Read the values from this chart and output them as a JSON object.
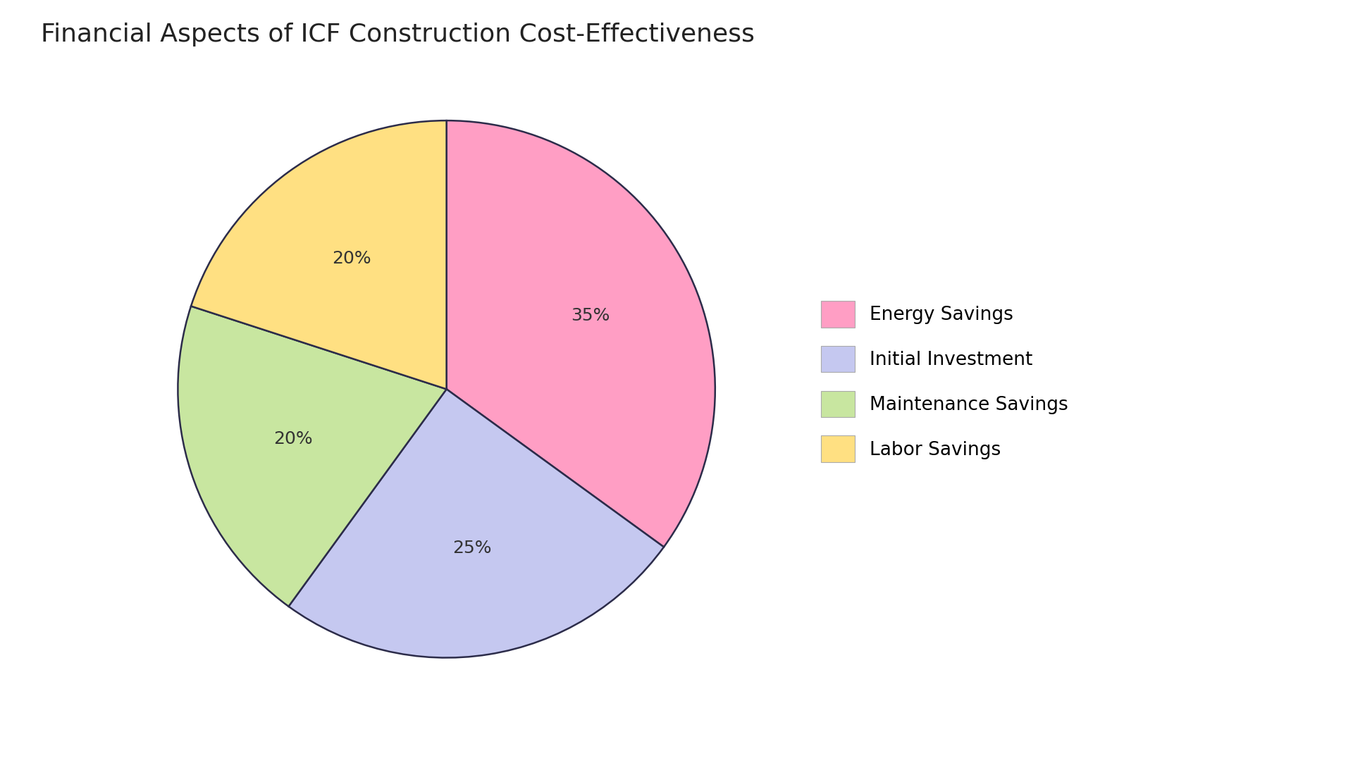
{
  "title": "Financial Aspects of ICF Construction Cost-Effectiveness",
  "segments": [
    {
      "label": "Energy Savings",
      "value": 35,
      "color": "#FF9EC4",
      "pct_label": "35%"
    },
    {
      "label": "Initial Investment",
      "value": 25,
      "color": "#C5C8F0",
      "pct_label": "25%"
    },
    {
      "label": "Maintenance Savings",
      "value": 20,
      "color": "#C8E6A0",
      "pct_label": "20%"
    },
    {
      "label": "Labor Savings",
      "value": 20,
      "color": "#FFE082",
      "pct_label": "20%"
    }
  ],
  "edge_color": "#2c2c4a",
  "edge_linewidth": 1.8,
  "background_color": "#ffffff",
  "title_fontsize": 26,
  "label_fontsize": 18,
  "legend_fontsize": 19,
  "startangle": 90
}
